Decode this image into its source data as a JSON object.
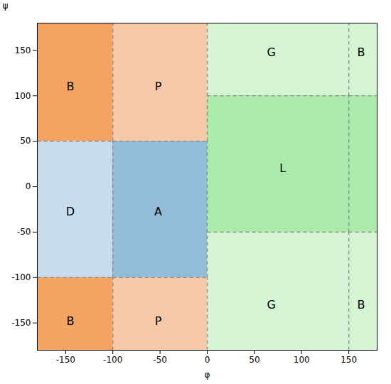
{
  "chart_data": {
    "type": "regions",
    "xlabel": "φ",
    "ylabel": "ψ",
    "xlim": [
      -180,
      180
    ],
    "ylim": [
      -180,
      180
    ],
    "xticks": [
      -150,
      -100,
      -50,
      0,
      50,
      100,
      150
    ],
    "yticks": [
      -150,
      -100,
      -50,
      0,
      50,
      100,
      150
    ],
    "color": "#F4A460",
    "grid": false,
    "regions": [
      {
        "x1": -180,
        "x2": -100,
        "y1": 50,
        "y2": 180,
        "color": "#F4A460"
      },
      {
        "x1": -180,
        "x2": -100,
        "y1": -180,
        "y2": -100,
        "color": "#F4A460"
      },
      {
        "x1": 150,
        "x2": 180,
        "y1": 100,
        "y2": 180,
        "color": "#F4A460"
      },
      {
        "x1": 150,
        "x2": 180,
        "y1": -180,
        "y2": -50,
        "color": "#F4A460"
      },
      {
        "x1": -100,
        "x2": 0,
        "y1": 50,
        "y2": 180,
        "color": "#F5C8A8"
      },
      {
        "x1": -100,
        "x2": 0,
        "y1": -180,
        "y2": -100,
        "color": "#F5C8A8"
      },
      {
        "x1": -180,
        "x2": -100,
        "y1": -100,
        "y2": 50,
        "color": "#C8DCEE"
      },
      {
        "x1": -100,
        "x2": 0,
        "y1": -100,
        "y2": 50,
        "color": "#92BCD8"
      },
      {
        "x1": 0,
        "x2": 180,
        "y1": 100,
        "y2": 180,
        "color": "#D4F4D4"
      },
      {
        "x1": 0,
        "x2": 180,
        "y1": -180,
        "y2": -50,
        "color": "#D4F4D4"
      },
      {
        "x1": 0,
        "x2": 180,
        "y1": -50,
        "y2": 100,
        "color": "#AAEAAA"
      }
    ],
    "annotations": [
      {
        "text": "B",
        "x": -145,
        "y": 110
      },
      {
        "text": "B",
        "x": -145,
        "y": -148
      },
      {
        "text": "B",
        "x": 163,
        "y": 148
      },
      {
        "text": "B",
        "x": 163,
        "y": -130
      },
      {
        "text": "P",
        "x": -52,
        "y": 110
      },
      {
        "text": "P",
        "x": -52,
        "y": -148
      },
      {
        "text": "D",
        "x": -145,
        "y": -28
      },
      {
        "text": "A",
        "x": -52,
        "y": -28
      },
      {
        "text": "G",
        "x": 68,
        "y": 148
      },
      {
        "text": "G",
        "x": 68,
        "y": -130
      },
      {
        "text": "L",
        "x": 80,
        "y": 20
      }
    ],
    "boundaries": {
      "color": "#888888",
      "line_style": "dashed",
      "segments": [
        {
          "x1": -100,
          "x2": -100,
          "y1": 50,
          "y2": 180
        },
        {
          "x1": -100,
          "x2": -100,
          "y1": -180,
          "y2": -100
        },
        {
          "x1": -100,
          "x2": -100,
          "y1": -100,
          "y2": 50
        },
        {
          "x1": 0,
          "x2": 0,
          "y1": 50,
          "y2": 180
        },
        {
          "x1": 0,
          "x2": 0,
          "y1": -180,
          "y2": -100
        },
        {
          "x1": 0,
          "x2": 0,
          "y1": -100,
          "y2": 50
        },
        {
          "x1": -180,
          "x2": -100,
          "y1": 50,
          "y2": 50
        },
        {
          "x1": -100,
          "x2": 0,
          "y1": 50,
          "y2": 50
        },
        {
          "x1": -180,
          "x2": -100,
          "y1": -100,
          "y2": -100
        },
        {
          "x1": -100,
          "x2": 0,
          "y1": -100,
          "y2": -100
        },
        {
          "x1": 0,
          "x2": 150,
          "y1": 100,
          "y2": 100
        },
        {
          "x1": 0,
          "x2": 150,
          "y1": -50,
          "y2": -50
        },
        {
          "x1": 150,
          "x2": 180,
          "y1": 100,
          "y2": 100
        },
        {
          "x1": 150,
          "x2": 180,
          "y1": -50,
          "y2": -50
        },
        {
          "x1": 150,
          "x2": 150,
          "y1": 100,
          "y2": 180
        },
        {
          "x1": 150,
          "x2": 150,
          "y1": -50,
          "y2": 100
        },
        {
          "x1": 150,
          "x2": 150,
          "y1": -180,
          "y2": -50
        }
      ]
    }
  }
}
